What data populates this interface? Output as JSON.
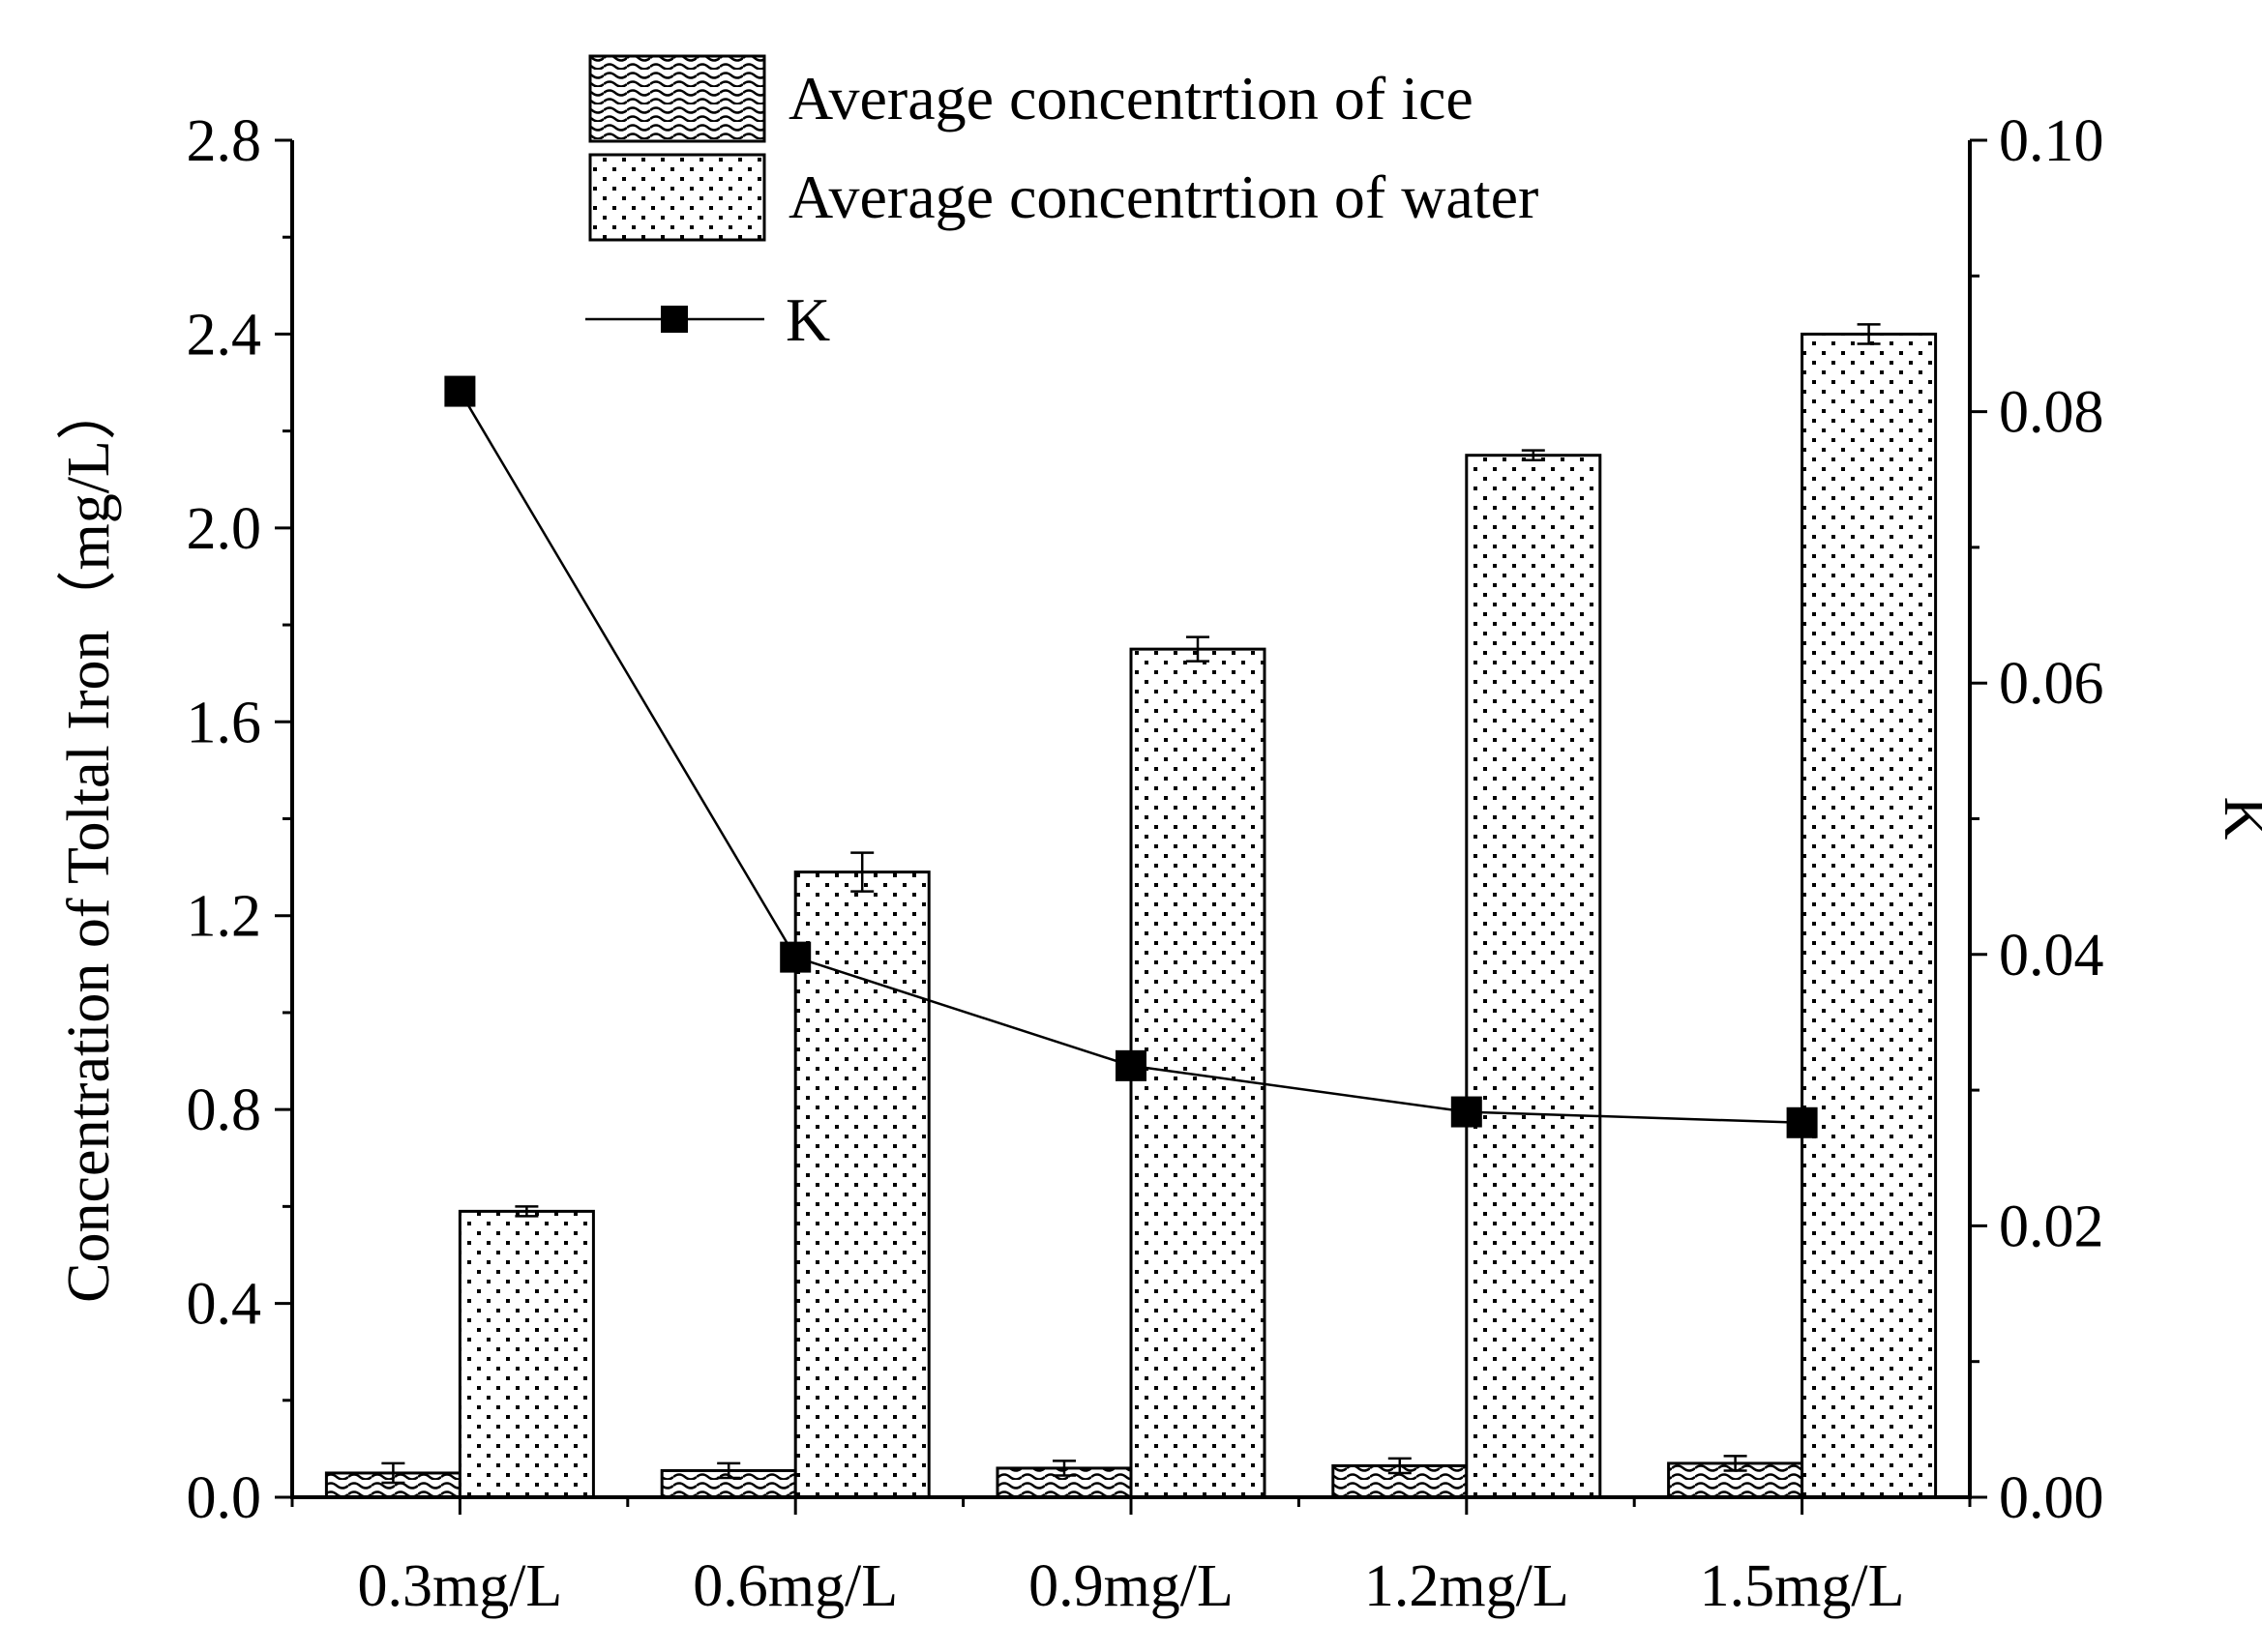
{
  "chart_data": {
    "type": "bar",
    "categories": [
      "0.3mg/L",
      "0.6mg/L",
      "0.9mg/L",
      "1.2mg/L",
      "1.5mg/L"
    ],
    "series": [
      {
        "name": "Average concentrtion of ice",
        "axis": "left",
        "pattern": "wave",
        "values": [
          0.05,
          0.055,
          0.06,
          0.065,
          0.07
        ],
        "errors": [
          0.02,
          0.015,
          0.015,
          0.015,
          0.015
        ]
      },
      {
        "name": "Average concentrtion of water",
        "axis": "left",
        "pattern": "dots",
        "values": [
          0.59,
          1.29,
          1.75,
          2.15,
          2.4
        ],
        "errors": [
          0.01,
          0.04,
          0.025,
          0.01,
          0.02
        ]
      },
      {
        "name": "K",
        "axis": "right",
        "type": "line",
        "marker": "square",
        "values": [
          0.0815,
          0.0398,
          0.0318,
          0.0284,
          0.0276
        ]
      }
    ],
    "left_axis": {
      "label": "Concentration of Toltal Iron（mg/L）",
      "ylim": [
        0,
        2.8
      ],
      "ticks": [
        "0.0",
        "0.4",
        "0.8",
        "1.2",
        "1.6",
        "2.0",
        "2.4",
        "2.8"
      ]
    },
    "right_axis": {
      "label": "K",
      "ylim": [
        0,
        0.1
      ],
      "ticks": [
        "0.00",
        "0.02",
        "0.04",
        "0.06",
        "0.08",
        "0.10"
      ]
    },
    "legend_position": "top-center",
    "grid": false
  }
}
